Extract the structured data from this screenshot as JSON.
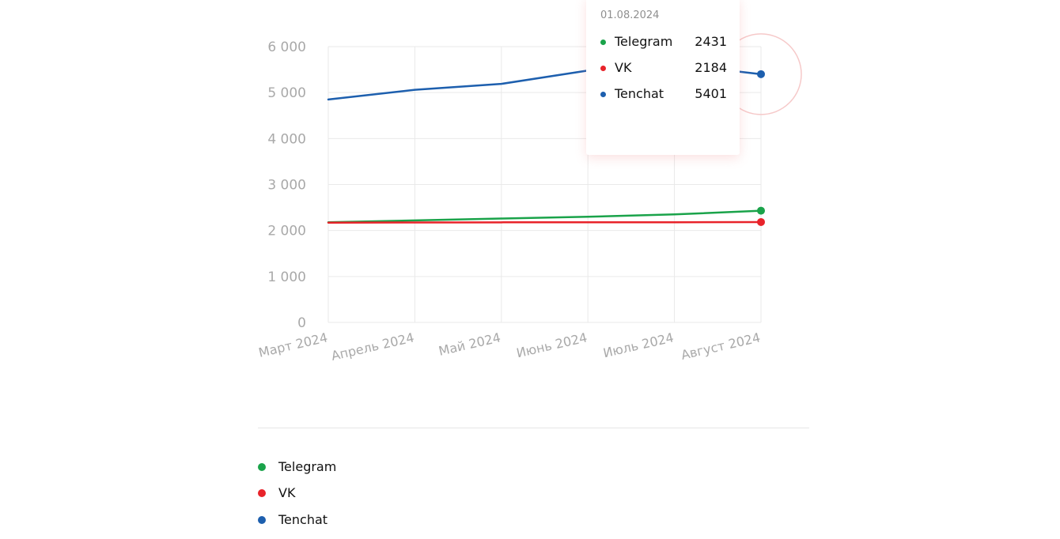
{
  "chart_data": {
    "type": "line",
    "categories": [
      "Март 2024",
      "Апрель 2024",
      "Май 2024",
      "Июнь 2024",
      "Июль 2024",
      "Август 2024"
    ],
    "y_ticks": [
      "0",
      "1 000",
      "2 000",
      "3 000",
      "4 000",
      "5 000",
      "6 000"
    ],
    "ylim": [
      0,
      6000
    ],
    "grid": true,
    "series": [
      {
        "name": "Telegram",
        "color": "#1aa34a",
        "values": [
          2180,
          2220,
          2260,
          2300,
          2350,
          2431
        ]
      },
      {
        "name": "VK",
        "color": "#e8232a",
        "values": [
          2170,
          2175,
          2178,
          2180,
          2180,
          2184
        ]
      },
      {
        "name": "Tenchat",
        "color": "#1d5fae",
        "values": [
          4850,
          5060,
          5190,
          5480,
          5620,
          5401
        ]
      }
    ],
    "highlight_index": 5,
    "tooltip": {
      "date": "01.08.2024",
      "rows": [
        {
          "name": "Telegram",
          "value": "2431",
          "color": "#1aa34a"
        },
        {
          "name": "VK",
          "value": "2184",
          "color": "#e8232a"
        },
        {
          "name": "Tenchat",
          "value": "5401",
          "color": "#1d5fae"
        }
      ]
    },
    "legend": [
      {
        "name": "Telegram",
        "color": "#1aa34a"
      },
      {
        "name": "VK",
        "color": "#e8232a"
      },
      {
        "name": "Tenchat",
        "color": "#1d5fae"
      }
    ]
  }
}
